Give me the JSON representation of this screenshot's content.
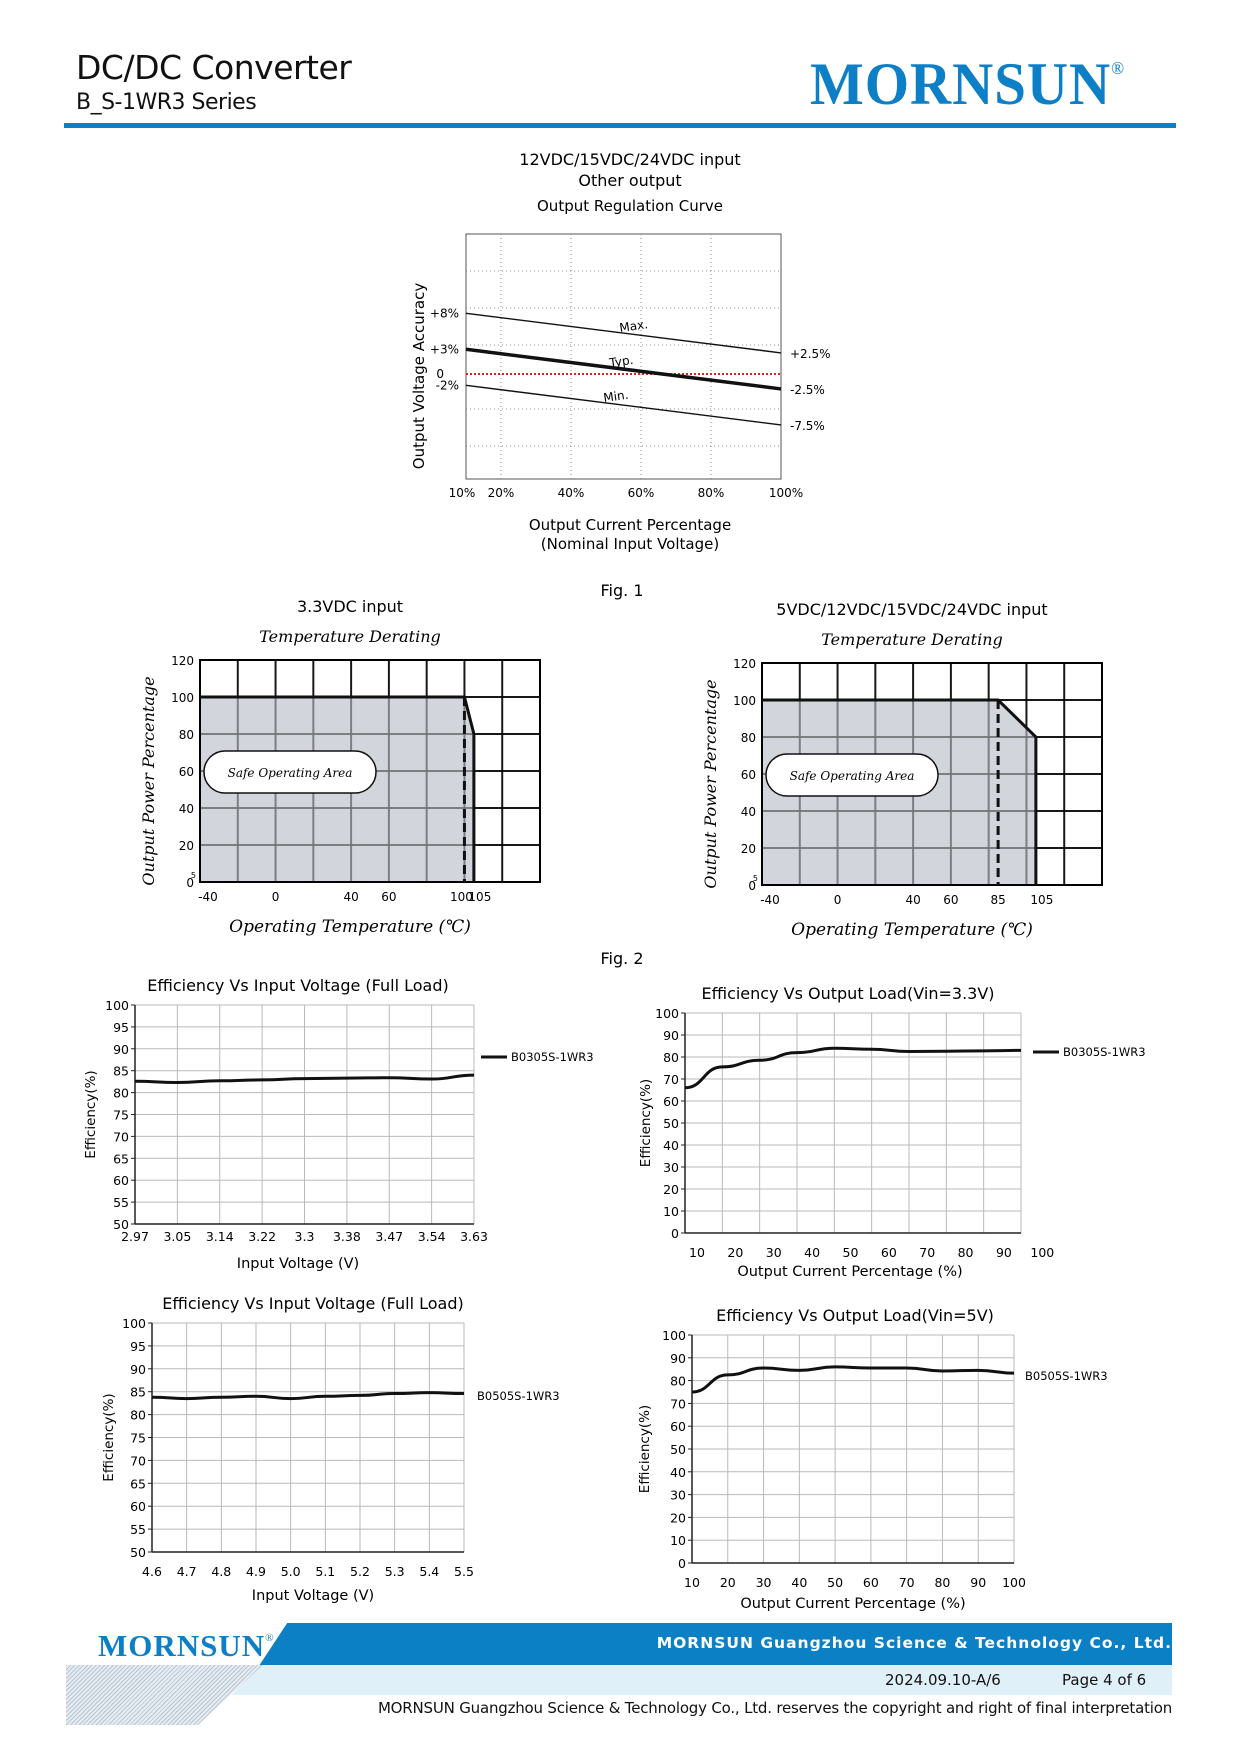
{
  "header": {
    "title": "DC/DC Converter",
    "series": "B_S-1WR3 Series",
    "logo": "MORNSUN",
    "logo_mark": "®",
    "brand_color": "#0d7fc6"
  },
  "figure_labels": [
    "Fig. 1",
    "Fig. 2"
  ],
  "chart_data": [
    {
      "id": "regulation",
      "type": "line",
      "heading1": "12VDC/15VDC/24VDC input",
      "heading2": "Other output",
      "title": "Output Regulation Curve",
      "xlabel": "Output Current Percentage",
      "xlabel2": "(Nominal Input Voltage)",
      "ylabel": "Output Voltage Accuracy",
      "x_ticks": [
        "10%",
        "20%",
        "40%",
        "60%",
        "80%",
        "100%"
      ],
      "xlim": [
        10,
        100
      ],
      "ylim": [
        -15,
        19
      ],
      "grid": "dotted",
      "zero_line_color": "#d9261c",
      "zero_label": "0",
      "series": [
        {
          "name": "Max.",
          "x": [
            10,
            100
          ],
          "y": [
            8,
            2.5
          ],
          "start_label": "+8%",
          "end_label": "+2.5%"
        },
        {
          "name": "Typ.",
          "x": [
            10,
            100
          ],
          "y": [
            3,
            -2.5
          ],
          "start_label": "+3%",
          "end_label": "-2.5%"
        },
        {
          "name": "Min.",
          "x": [
            10,
            100
          ],
          "y": [
            -2,
            -7.5
          ],
          "start_label": "-2%",
          "end_label": "-7.5%"
        }
      ]
    },
    {
      "id": "derating-33",
      "type": "area",
      "heading": "3.3VDC input",
      "title": "Temperature Derating",
      "xlabel": "Operating Temperature (℃)",
      "ylabel": "Output Power Percentage",
      "x_ticks": [
        "-40",
        "0",
        "40",
        "60",
        "100",
        "105"
      ],
      "y_ticks": [
        "120",
        "100",
        "80",
        "60",
        "40",
        "20",
        "0"
      ],
      "y_minor_label": "5",
      "ylim": [
        0,
        120
      ],
      "area_label": "Safe Operating Area",
      "x": [
        -40,
        100,
        105,
        105
      ],
      "y": [
        100,
        100,
        80,
        0
      ],
      "dashed_x": 100
    },
    {
      "id": "derating-5",
      "type": "area",
      "heading": "5VDC/12VDC/15VDC/24VDC input",
      "title": "Temperature Derating",
      "xlabel": "Operating Temperature (℃)",
      "ylabel": "Output Power Percentage",
      "x_ticks": [
        "-40",
        "0",
        "40",
        "60",
        "85",
        "105"
      ],
      "y_ticks": [
        "120",
        "100",
        "80",
        "60",
        "40",
        "20",
        "0"
      ],
      "y_minor_label": "5",
      "ylim": [
        0,
        120
      ],
      "area_label": "Safe Operating Area",
      "x": [
        -40,
        85,
        105,
        105
      ],
      "y": [
        100,
        100,
        80,
        0
      ],
      "dashed_x": 85
    },
    {
      "id": "eff-vin-33",
      "type": "line",
      "title": "Efficiency Vs Input Voltage (Full Load)",
      "xlabel": "Input Voltage (V)",
      "ylabel": "Efficiency(%)",
      "x_ticks": [
        "2.97",
        "3.05",
        "3.14",
        "3.22",
        "3.3",
        "3.38",
        "3.47",
        "3.54",
        "3.63"
      ],
      "y_ticks": [
        "100",
        "95",
        "90",
        "85",
        "80",
        "75",
        "70",
        "65",
        "60",
        "55",
        "50"
      ],
      "ylim": [
        50,
        100
      ],
      "series": [
        {
          "name": "B0305S-1WR3",
          "x": [
            2.97,
            3.05,
            3.14,
            3.22,
            3.3,
            3.38,
            3.47,
            3.54,
            3.63
          ],
          "y": [
            82.6,
            82.3,
            82.7,
            82.9,
            83.2,
            83.3,
            83.4,
            83.1,
            84.0
          ]
        }
      ]
    },
    {
      "id": "eff-load-33",
      "type": "line",
      "title": "Efficiency Vs Output Load(Vin=3.3V)",
      "xlabel": "Output Current Percentage (%)",
      "ylabel": "Efficiency(%)",
      "x_ticks": [
        "10",
        "20",
        "30",
        "40",
        "50",
        "60",
        "70",
        "80",
        "90",
        "100"
      ],
      "y_ticks": [
        "100",
        "90",
        "80",
        "70",
        "60",
        "50",
        "40",
        "30",
        "20",
        "10",
        "0"
      ],
      "ylim": [
        0,
        100
      ],
      "series": [
        {
          "name": "B0305S-1WR3",
          "x": [
            10,
            20,
            30,
            40,
            50,
            60,
            70,
            80,
            90,
            100
          ],
          "y": [
            66,
            75.5,
            78.5,
            82,
            84,
            83.5,
            82.5,
            82.6,
            82.8,
            83
          ]
        }
      ]
    },
    {
      "id": "eff-vin-5",
      "type": "line",
      "title": "Efficiency Vs Input Voltage (Full Load)",
      "xlabel": "Input Voltage (V)",
      "ylabel": "Efficiency(%)",
      "x_ticks": [
        "4.6",
        "4.7",
        "4.8",
        "4.9",
        "5.0",
        "5.1",
        "5.2",
        "5.3",
        "5.4",
        "5.5"
      ],
      "y_ticks": [
        "100",
        "95",
        "90",
        "85",
        "80",
        "75",
        "70",
        "65",
        "60",
        "55",
        "50"
      ],
      "ylim": [
        50,
        100
      ],
      "series": [
        {
          "name": "B0505S-1WR3",
          "x": [
            4.6,
            4.7,
            4.8,
            4.9,
            5.0,
            5.1,
            5.2,
            5.3,
            5.4,
            5.5
          ],
          "y": [
            83.8,
            83.5,
            83.8,
            84.0,
            83.5,
            84.0,
            84.2,
            84.6,
            84.8,
            84.6
          ]
        }
      ]
    },
    {
      "id": "eff-load-5",
      "type": "line",
      "title": "Efficiency Vs Output Load(Vin=5V)",
      "xlabel": "Output Current Percentage (%)",
      "ylabel": "Efficiency(%)",
      "x_ticks": [
        "10",
        "20",
        "30",
        "40",
        "50",
        "60",
        "70",
        "80",
        "90",
        "100"
      ],
      "y_ticks": [
        "100",
        "90",
        "80",
        "70",
        "60",
        "50",
        "40",
        "30",
        "20",
        "10",
        "0"
      ],
      "ylim": [
        0,
        100
      ],
      "series": [
        {
          "name": "B0505S-1WR3",
          "x": [
            10,
            20,
            30,
            40,
            50,
            60,
            70,
            80,
            90,
            100
          ],
          "y": [
            75,
            82.5,
            85.5,
            84.5,
            86,
            85.5,
            85.5,
            84.2,
            84.5,
            83.3
          ]
        }
      ]
    }
  ],
  "footer": {
    "logo": "MORNSUN",
    "logo_mark": "®",
    "company": "MORNSUN Guangzhou Science & Technology Co., Ltd.",
    "date_rev": "2024.09.10-A/6",
    "page": "Page 4 of 6",
    "copyright": "MORNSUN Guangzhou Science & Technology Co., Ltd. reserves the copyright and right of final interpretation"
  }
}
